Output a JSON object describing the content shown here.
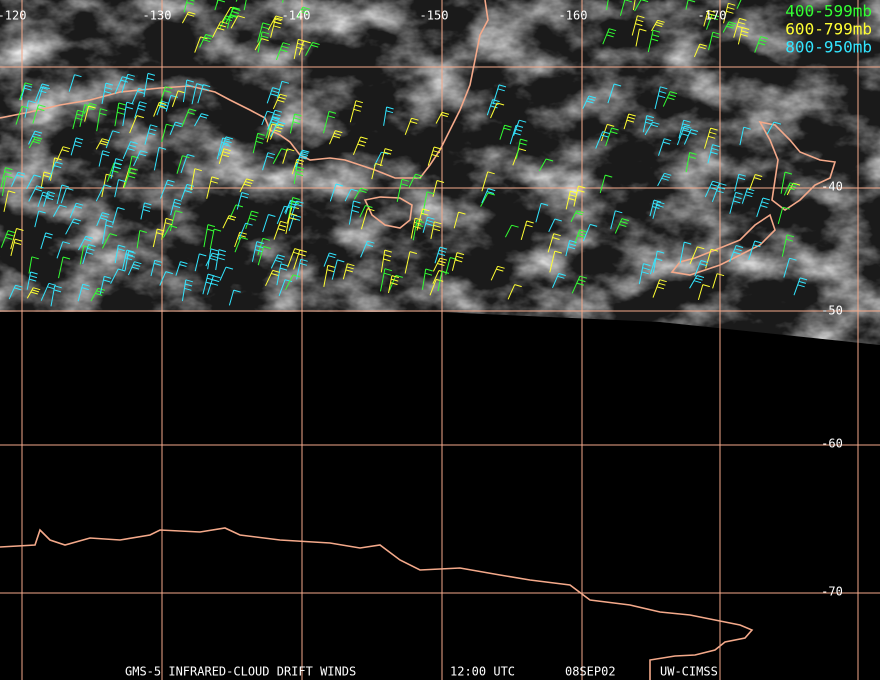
{
  "map": {
    "lon_labels": [
      -120,
      -130,
      -140,
      -150,
      -160,
      -170
    ],
    "lat_labels": [
      -40,
      -50,
      -60,
      -70
    ],
    "legend": [
      {
        "label": "400-599mb",
        "color": "#33ff33"
      },
      {
        "label": "600-799mb",
        "color": "#ffff33"
      },
      {
        "label": "800-950mb",
        "color": "#33e6ff"
      }
    ],
    "footer": [
      "GMS-5 INFRARED-CLOUD DRIFT WINDS",
      "12:00 UTC",
      "08SEP02",
      "UW-CIMSS"
    ]
  }
}
